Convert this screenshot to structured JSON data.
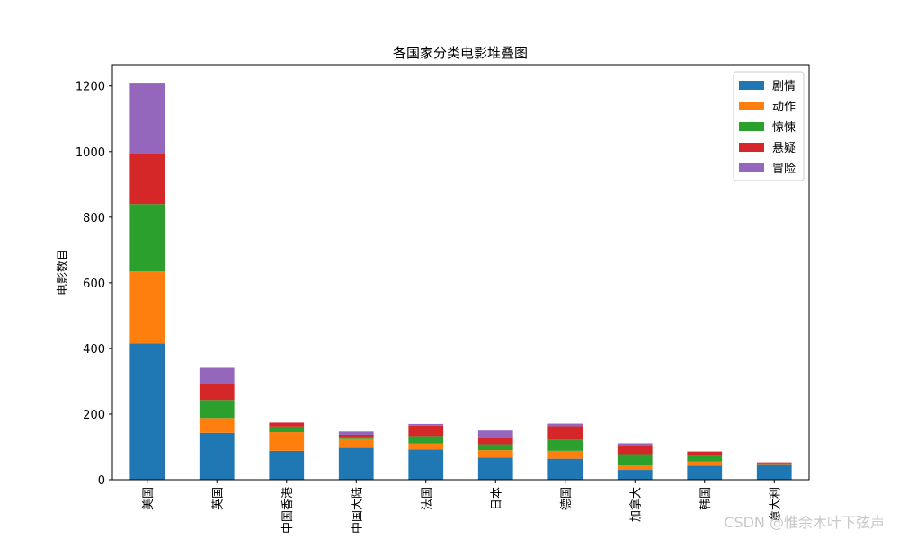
{
  "chart_data": {
    "type": "bar",
    "stacked": true,
    "title": "各国家分类电影堆叠图",
    "xlabel": "",
    "ylabel": "电影数目",
    "ylim": [
      0,
      1265
    ],
    "yticks": [
      0,
      200,
      400,
      600,
      800,
      1000,
      1200
    ],
    "legend_position": "top-right",
    "categories": [
      "美国",
      "英国",
      "中国香港",
      "中国大陆",
      "法国",
      "日本",
      "德国",
      "加拿大",
      "韩国",
      "意大利"
    ],
    "series": [
      {
        "name": "剧情",
        "color": "#1f77b4",
        "values": [
          415,
          143,
          88,
          97,
          92,
          67,
          64,
          30,
          43,
          45
        ]
      },
      {
        "name": "动作",
        "color": "#ff7f0e",
        "values": [
          220,
          45,
          57,
          27,
          18,
          23,
          24,
          13,
          13,
          3
        ]
      },
      {
        "name": "惊悚",
        "color": "#2ca02c",
        "values": [
          205,
          55,
          17,
          5,
          23,
          18,
          35,
          35,
          16,
          2
        ]
      },
      {
        "name": "悬疑",
        "color": "#d62728",
        "values": [
          155,
          48,
          12,
          8,
          32,
          18,
          40,
          25,
          14,
          3
        ]
      },
      {
        "name": "冒险",
        "color": "#9467bd",
        "values": [
          215,
          50,
          0,
          10,
          5,
          24,
          8,
          8,
          0,
          0
        ]
      }
    ]
  },
  "watermark": "CSDN @惟余木叶下弦声"
}
